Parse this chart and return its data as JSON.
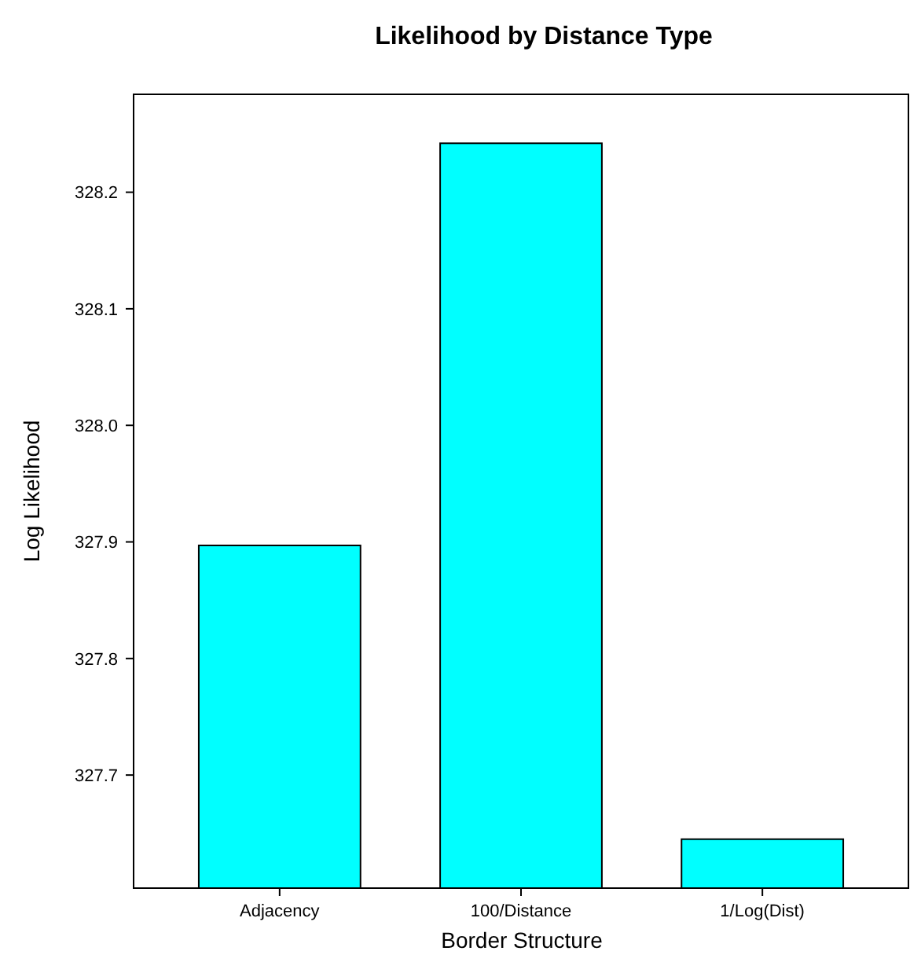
{
  "chart_data": {
    "type": "bar",
    "title": "Likelihood by Distance Type",
    "xlabel": "Border Structure",
    "ylabel": "Log Likelihood",
    "categories": [
      "Adjacency",
      "100/Distance",
      "1/Log(Dist)"
    ],
    "values": [
      327.897,
      328.242,
      327.645
    ],
    "color": "#00ffff",
    "ylim": [
      327.603,
      328.284
    ],
    "yticks": [
      327.7,
      327.8,
      327.9,
      {
        "value": 328.0,
        "label": "328.0"
      },
      328.1,
      328.2
    ],
    "grid": false
  }
}
